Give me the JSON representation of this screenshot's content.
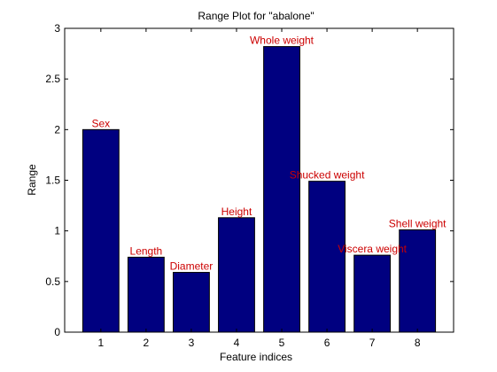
{
  "chart_data": {
    "type": "bar",
    "title": "Range Plot for \"abalone\"",
    "xlabel": "Feature indices",
    "ylabel": "Range",
    "categories": [
      "1",
      "2",
      "3",
      "4",
      "5",
      "6",
      "7",
      "8"
    ],
    "values": [
      2.0,
      0.74,
      0.59,
      1.13,
      2.82,
      1.49,
      0.76,
      1.01
    ],
    "bar_labels": [
      "Sex",
      "Length",
      "Diameter",
      "Height",
      "Whole weight",
      "Shucked weight",
      "Viscera weight",
      "Shell weight"
    ],
    "yticks": [
      "0",
      "0.5",
      "1",
      "1.5",
      "2",
      "2.5",
      "3"
    ],
    "ylim": [
      0,
      3
    ],
    "xlim": [
      0.2,
      8.8
    ],
    "grid": false,
    "bar_color": "#000080",
    "label_color": "#cc0000"
  }
}
